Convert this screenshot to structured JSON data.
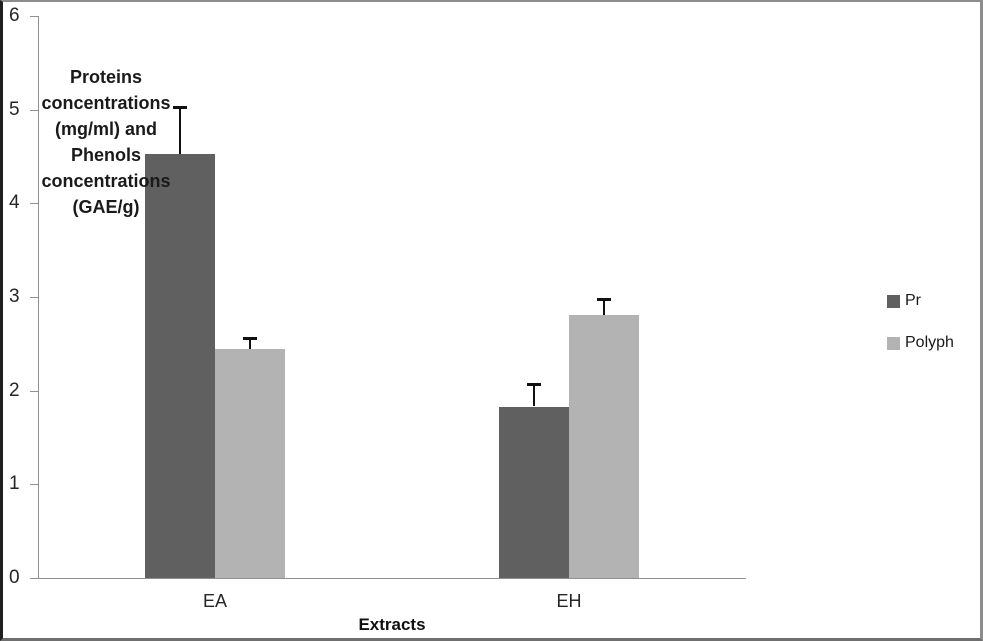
{
  "chart_data": {
    "type": "bar",
    "title": "",
    "categories": [
      "EA",
      "EH"
    ],
    "series": [
      {
        "name": "Pr",
        "color": "#606060",
        "values": [
          4.53,
          1.83
        ],
        "errors_up": [
          0.5,
          0.24
        ]
      },
      {
        "name": "Polyph",
        "color": "#b3b3b3",
        "values": [
          2.44,
          2.81
        ],
        "errors_up": [
          0.12,
          0.17
        ]
      }
    ],
    "xlabel": "Extracts",
    "ylabel_lines": [
      "Proteins",
      "concentrations",
      "(mg/ml) and",
      "Phenols",
      "concentrations",
      "(GAE/g)"
    ],
    "ylim": [
      0,
      6
    ],
    "yticks": [
      0,
      1,
      2,
      3,
      4,
      5,
      6
    ],
    "grid": false,
    "legend_position": "right",
    "legend_entries": [
      "Pr",
      "Polyph"
    ],
    "error_bar_color": "#111111",
    "axis_color": "#919191",
    "background": "#ffffff"
  }
}
